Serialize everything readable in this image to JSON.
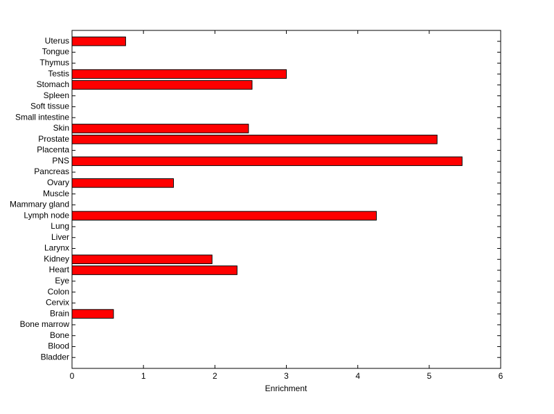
{
  "chart_data": {
    "type": "barh",
    "xlabel": "Enrichment",
    "categories": [
      "Bladder",
      "Blood",
      "Bone",
      "Bone marrow",
      "Brain",
      "Cervix",
      "Colon",
      "Eye",
      "Heart",
      "Kidney",
      "Larynx",
      "Liver",
      "Lung",
      "Lymph node",
      "Mammary gland",
      "Muscle",
      "Ovary",
      "Pancreas",
      "PNS",
      "Placenta",
      "Prostate",
      "Skin",
      "Small intestine",
      "Soft tissue",
      "Spleen",
      "Stomach",
      "Testis",
      "Thymus",
      "Tongue",
      "Uterus"
    ],
    "values": [
      0,
      0,
      0,
      0,
      0.58,
      0,
      0,
      0,
      2.31,
      1.96,
      0,
      0,
      0,
      4.26,
      0,
      0,
      1.42,
      0,
      5.46,
      0,
      5.11,
      2.47,
      0,
      0,
      0,
      2.52,
      3.0,
      0,
      0,
      0.75
    ],
    "color": "#ff0000",
    "xlim": [
      0,
      6
    ],
    "xticks": [
      0,
      1,
      2,
      3,
      4,
      5,
      6
    ]
  }
}
